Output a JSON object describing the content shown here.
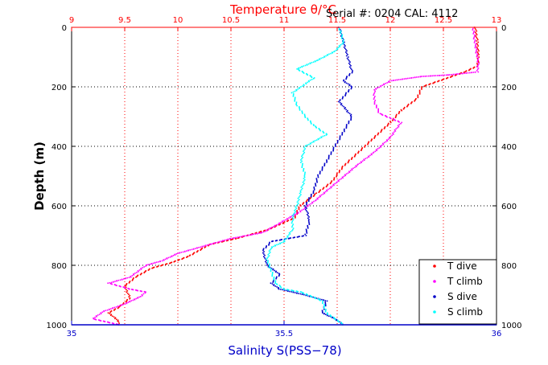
{
  "chart_data": {
    "type": "line",
    "title": "Temperature θ/°C",
    "header_text": "Serial #: 0204  CAL: 4112",
    "xlabel": "Salinity S(PSS−78)",
    "ylabel": "Depth (m)",
    "colors": {
      "top_axis": "#ff0000",
      "bottom_axis": "#0000c8",
      "t_dive": "#ff0000",
      "t_climb": "#ff00ff",
      "s_dive": "#0000c8",
      "s_climb": "#00ffff"
    },
    "y_axis": {
      "range": [
        0,
        1000
      ],
      "reversed": true,
      "ticks": [
        0,
        200,
        400,
        600,
        800,
        1000
      ],
      "tick_labels": [
        "0",
        "200",
        "400",
        "600",
        "800",
        "1000"
      ],
      "mirrored_right": true
    },
    "x_top": {
      "quantity": "temperature",
      "range": [
        9,
        13
      ],
      "ticks": [
        9,
        9.5,
        10,
        10.5,
        11,
        11.5,
        12,
        12.5,
        13
      ],
      "tick_labels": [
        "9",
        "9.5",
        "10",
        "10.5",
        "11",
        "11.5",
        "12",
        "12.5",
        "13"
      ]
    },
    "x_bottom": {
      "quantity": "salinity",
      "range": [
        35,
        36
      ],
      "ticks": [
        35,
        35.5,
        36
      ],
      "tick_labels": [
        "35",
        "35.5",
        "36"
      ]
    },
    "grid": true,
    "legend_position": "bottom-right",
    "series": [
      {
        "name": "T dive",
        "axis": "top",
        "points": [
          [
            12.8,
            0
          ],
          [
            12.82,
            50
          ],
          [
            12.83,
            100
          ],
          [
            12.82,
            130
          ],
          [
            12.7,
            150
          ],
          [
            12.5,
            175
          ],
          [
            12.3,
            200
          ],
          [
            12.25,
            240
          ],
          [
            12.1,
            280
          ],
          [
            12.0,
            320
          ],
          [
            11.85,
            370
          ],
          [
            11.7,
            420
          ],
          [
            11.55,
            470
          ],
          [
            11.45,
            520
          ],
          [
            11.3,
            560
          ],
          [
            11.15,
            600
          ],
          [
            11.1,
            640
          ],
          [
            10.85,
            680
          ],
          [
            10.55,
            710
          ],
          [
            10.3,
            730
          ],
          [
            10.1,
            770
          ],
          [
            9.95,
            790
          ],
          [
            9.75,
            810
          ],
          [
            9.6,
            840
          ],
          [
            9.5,
            870
          ],
          [
            9.55,
            910
          ],
          [
            9.45,
            940
          ],
          [
            9.35,
            960
          ],
          [
            9.45,
            990
          ],
          [
            9.45,
            1000
          ]
        ]
      },
      {
        "name": "T climb",
        "axis": "top",
        "points": [
          [
            9.45,
            1000
          ],
          [
            9.2,
            980
          ],
          [
            9.3,
            955
          ],
          [
            9.5,
            930
          ],
          [
            9.65,
            905
          ],
          [
            9.7,
            890
          ],
          [
            9.55,
            880
          ],
          [
            9.35,
            860
          ],
          [
            9.55,
            840
          ],
          [
            9.7,
            800
          ],
          [
            9.85,
            785
          ],
          [
            10.0,
            760
          ],
          [
            10.2,
            740
          ],
          [
            10.5,
            710
          ],
          [
            10.8,
            690
          ],
          [
            10.95,
            660
          ],
          [
            11.15,
            620
          ],
          [
            11.3,
            580
          ],
          [
            11.5,
            520
          ],
          [
            11.7,
            460
          ],
          [
            11.85,
            420
          ],
          [
            12.0,
            370
          ],
          [
            12.1,
            320
          ],
          [
            11.9,
            290
          ],
          [
            11.85,
            250
          ],
          [
            11.85,
            210
          ],
          [
            12.0,
            180
          ],
          [
            12.3,
            165
          ],
          [
            12.55,
            160
          ],
          [
            12.82,
            150
          ],
          [
            12.83,
            120
          ],
          [
            12.8,
            60
          ],
          [
            12.78,
            0
          ]
        ]
      },
      {
        "name": "S dive",
        "axis": "bottom",
        "points": [
          [
            35.63,
            0
          ],
          [
            35.64,
            50
          ],
          [
            35.65,
            100
          ],
          [
            35.66,
            150
          ],
          [
            35.64,
            180
          ],
          [
            35.66,
            200
          ],
          [
            35.63,
            250
          ],
          [
            35.66,
            300
          ],
          [
            35.64,
            350
          ],
          [
            35.62,
            400
          ],
          [
            35.6,
            450
          ],
          [
            35.58,
            500
          ],
          [
            35.57,
            550
          ],
          [
            35.55,
            600
          ],
          [
            35.56,
            650
          ],
          [
            35.55,
            700
          ],
          [
            35.47,
            720
          ],
          [
            35.45,
            750
          ],
          [
            35.46,
            800
          ],
          [
            35.49,
            830
          ],
          [
            35.47,
            860
          ],
          [
            35.49,
            880
          ],
          [
            35.55,
            900
          ],
          [
            35.6,
            920
          ],
          [
            35.59,
            960
          ],
          [
            35.62,
            980
          ],
          [
            35.64,
            1000
          ]
        ]
      },
      {
        "name": "S climb",
        "axis": "bottom",
        "points": [
          [
            35.64,
            1000
          ],
          [
            35.6,
            960
          ],
          [
            35.59,
            920
          ],
          [
            35.54,
            890
          ],
          [
            35.5,
            880
          ],
          [
            35.48,
            860
          ],
          [
            35.47,
            820
          ],
          [
            35.46,
            780
          ],
          [
            35.47,
            740
          ],
          [
            35.5,
            720
          ],
          [
            35.52,
            680
          ],
          [
            35.52,
            640
          ],
          [
            35.53,
            600
          ],
          [
            35.54,
            550
          ],
          [
            35.55,
            500
          ],
          [
            35.54,
            450
          ],
          [
            35.55,
            400
          ],
          [
            35.6,
            360
          ],
          [
            35.57,
            330
          ],
          [
            35.55,
            300
          ],
          [
            35.53,
            260
          ],
          [
            35.52,
            220
          ],
          [
            35.55,
            190
          ],
          [
            35.57,
            170
          ],
          [
            35.53,
            140
          ],
          [
            35.58,
            110
          ],
          [
            35.62,
            80
          ],
          [
            35.64,
            50
          ],
          [
            35.63,
            0
          ]
        ]
      }
    ]
  }
}
